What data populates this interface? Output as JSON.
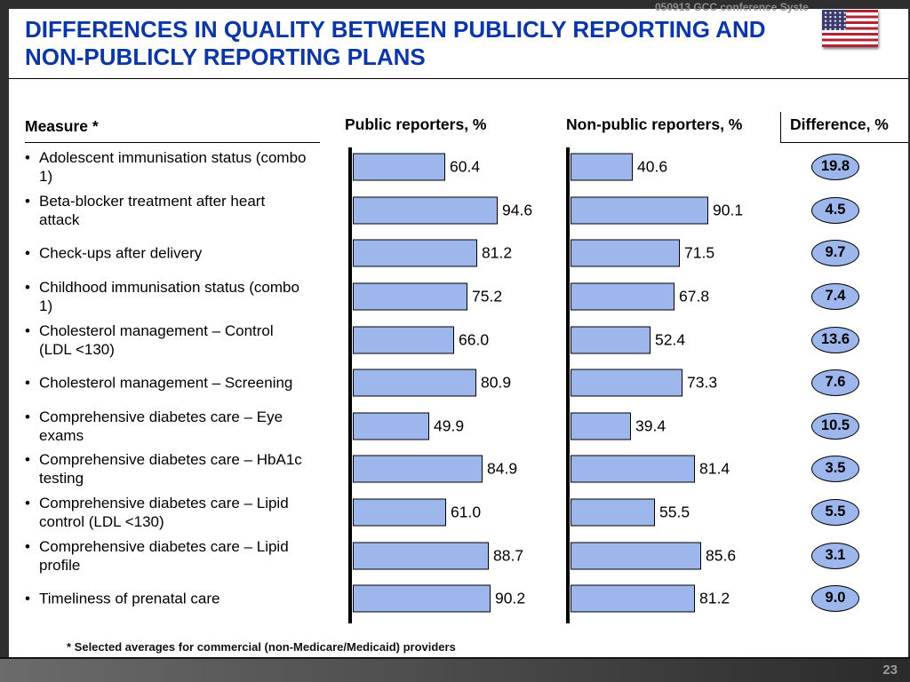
{
  "slide": {
    "header_note": "050913 GCC conference Syste",
    "title_line1": "DIFFERENCES IN QUALITY BETWEEN PUBLICLY REPORTING AND",
    "title_line2": "NON-PUBLICLY REPORTING PLANS",
    "footnote": "* Selected averages for commercial (non-Medicare/Medicaid) providers",
    "page_number": "23"
  },
  "columns": {
    "measure": "Measure *",
    "public": "Public reporters, %",
    "nonpublic": "Non-public reporters, %",
    "difference": "Difference, %"
  },
  "glyphs": {
    "bullet": "•"
  },
  "colors": {
    "title_blue": "#0a36a6",
    "bar_fill": "#9db6ec",
    "bar_border": "#000000",
    "frame_gray": "#2e2e2e"
  },
  "rows": [
    {
      "label": "Adolescent immunisation status (combo 1)",
      "public": "60.4",
      "nonpublic": "40.6",
      "diff": "19.8"
    },
    {
      "label": "Beta-blocker treatment after heart attack",
      "public": "94.6",
      "nonpublic": "90.1",
      "diff": "4.5"
    },
    {
      "label": "Check-ups after delivery",
      "public": "81.2",
      "nonpublic": "71.5",
      "diff": "9.7"
    },
    {
      "label": "Childhood immunisation status (combo 1)",
      "public": "75.2",
      "nonpublic": "67.8",
      "diff": "7.4"
    },
    {
      "label": "Cholesterol management – Control (LDL <130)",
      "public": "66.0",
      "nonpublic": "52.4",
      "diff": "13.6"
    },
    {
      "label": "Cholesterol management – Screening",
      "public": "80.9",
      "nonpublic": "73.3",
      "diff": "7.6"
    },
    {
      "label": "Comprehensive diabetes care – Eye exams",
      "public": "49.9",
      "nonpublic": "39.4",
      "diff": "10.5"
    },
    {
      "label": "Comprehensive diabetes care – HbA1c testing",
      "public": "84.9",
      "nonpublic": "81.4",
      "diff": "3.5"
    },
    {
      "label": "Comprehensive diabetes care – Lipid control (LDL <130)",
      "public": "61.0",
      "nonpublic": "55.5",
      "diff": "5.5"
    },
    {
      "label": "Comprehensive diabetes care – Lipid profile",
      "public": "88.7",
      "nonpublic": "85.6",
      "diff": "3.1"
    },
    {
      "label": "Timeliness of prenatal care",
      "public": "90.2",
      "nonpublic": "81.2",
      "diff": "9.0"
    }
  ],
  "chart_data": {
    "type": "bar",
    "orientation": "horizontal",
    "title": "Differences in quality between publicly reporting and non-publicly reporting plans",
    "categories": [
      "Adolescent immunisation status (combo 1)",
      "Beta-blocker treatment after heart attack",
      "Check-ups after delivery",
      "Childhood immunisation status (combo 1)",
      "Cholesterol management – Control (LDL <130)",
      "Cholesterol management – Screening",
      "Comprehensive diabetes care – Eye exams",
      "Comprehensive diabetes care – HbA1c testing",
      "Comprehensive diabetes care – Lipid control (LDL <130)",
      "Comprehensive diabetes care – Lipid profile",
      "Timeliness of prenatal care"
    ],
    "series": [
      {
        "name": "Public reporters, %",
        "values": [
          60.4,
          94.6,
          81.2,
          75.2,
          66.0,
          80.9,
          49.9,
          84.9,
          61.0,
          88.7,
          90.2
        ]
      },
      {
        "name": "Non-public reporters, %",
        "values": [
          40.6,
          90.1,
          71.5,
          67.8,
          52.4,
          73.3,
          39.4,
          81.4,
          55.5,
          85.6,
          81.2
        ]
      },
      {
        "name": "Difference, %",
        "values": [
          19.8,
          4.5,
          9.7,
          7.4,
          13.6,
          7.6,
          10.5,
          3.5,
          5.5,
          3.1,
          9.0
        ]
      }
    ],
    "xlim": [
      0,
      100
    ],
    "grid": false,
    "legend_position": "column-headers",
    "footnote": "* Selected averages for commercial (non-Medicare/Medicaid) providers"
  }
}
